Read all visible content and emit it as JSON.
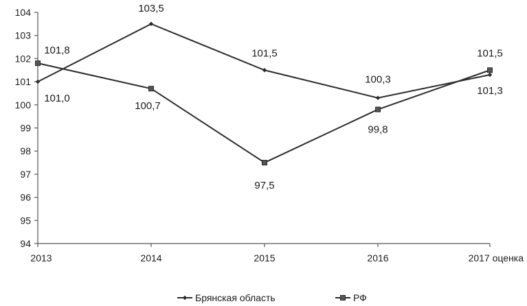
{
  "chart_data": {
    "type": "line",
    "categories": [
      "2013",
      "2014",
      "2015",
      "2016",
      "2017 оценка"
    ],
    "ylim": [
      94,
      104
    ],
    "yticks": [
      94,
      95,
      96,
      97,
      98,
      99,
      100,
      101,
      102,
      103,
      104
    ],
    "grid": false,
    "legend_position": "bottom",
    "series": [
      {
        "name": "Брянская область",
        "marker": "diamond",
        "color": "#2b2b2b",
        "values": [
          101.0,
          103.5,
          101.5,
          100.3,
          101.3
        ],
        "labels": [
          "101,0",
          "103,5",
          "101,5",
          "100,3",
          "101,3"
        ]
      },
      {
        "name": "РФ",
        "marker": "square",
        "color": "#2b2b2b",
        "values": [
          101.8,
          100.7,
          97.5,
          99.8,
          101.5
        ],
        "labels": [
          "101,8",
          "100,7",
          "97,5",
          "99,8",
          "101,5"
        ]
      }
    ]
  }
}
